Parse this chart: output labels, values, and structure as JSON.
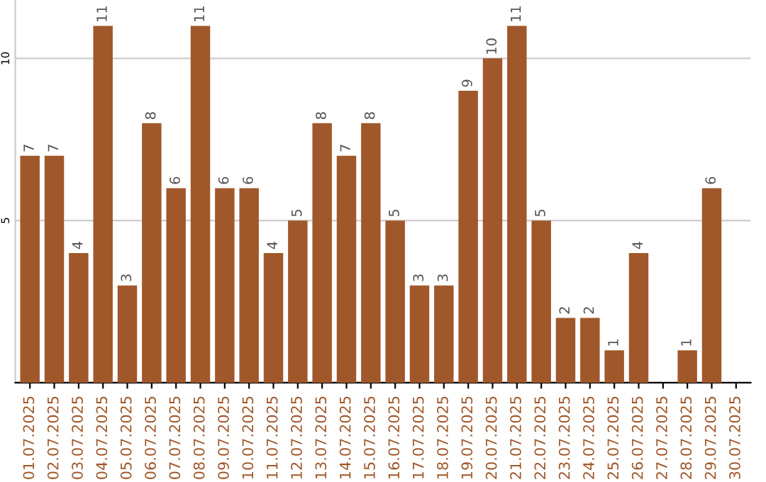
{
  "chart_data": {
    "type": "bar",
    "categories": [
      "01.07.2025",
      "02.07.2025",
      "03.07.2025",
      "04.07.2025",
      "05.07.2025",
      "06.07.2025",
      "07.07.2025",
      "08.07.2025",
      "09.07.2025",
      "10.07.2025",
      "11.07.2025",
      "12.07.2025",
      "13.07.2025",
      "14.07.2025",
      "15.07.2025",
      "16.07.2025",
      "17.07.2025",
      "18.07.2025",
      "19.07.2025",
      "20.07.2025",
      "21.07.2025",
      "22.07.2025",
      "23.07.2025",
      "24.07.2025",
      "25.07.2025",
      "26.07.2025",
      "27.07.2025",
      "28.07.2025",
      "29.07.2025",
      "30.07.2025"
    ],
    "values": [
      7,
      7,
      4,
      11,
      3,
      8,
      6,
      11,
      6,
      6,
      4,
      5,
      8,
      7,
      8,
      5,
      3,
      3,
      9,
      10,
      11,
      5,
      2,
      2,
      1,
      4,
      null,
      1,
      6,
      null
    ],
    "value_labels": [
      "7",
      "7",
      "4",
      "11",
      "3",
      "8",
      "6",
      "11",
      "6",
      "6",
      "4",
      "5",
      "8",
      "7",
      "8",
      "5",
      "3",
      "3",
      "9",
      "10",
      "11",
      "5",
      "2",
      "2",
      "1",
      "4",
      null,
      "1",
      "6",
      null
    ],
    "color": "#a0582a",
    "ylim": [
      0,
      11.8
    ],
    "yticks": [
      5,
      10
    ],
    "grid": "y",
    "legend": false
  }
}
